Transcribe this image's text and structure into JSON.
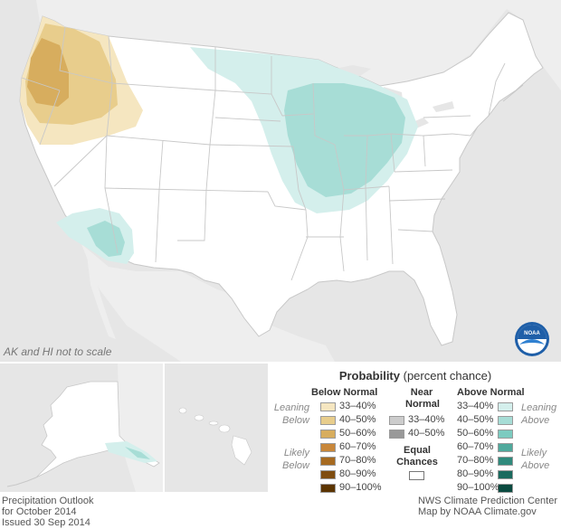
{
  "map": {
    "scale_note": "AK and HI not to scale",
    "ocean_color": "#e6e6e6",
    "land_color": "#ffffff",
    "below_colors": [
      "#f5e6c0",
      "#e8cd8c",
      "#d7ad5e",
      "#c8873a",
      "#a66a20",
      "#7f4d10",
      "#5b3400"
    ],
    "above_colors": [
      "#d4efec",
      "#a7ddd6",
      "#7ccbc0",
      "#4fa99c",
      "#2f8a7c",
      "#1a6a5e",
      "#0a4a40"
    ]
  },
  "legend": {
    "title_bold": "Probability",
    "title_rest": " (percent chance)",
    "below_header": "Below Normal",
    "near_header_1": "Near",
    "near_header_2": "Normal",
    "above_header": "Above Normal",
    "leaning_1": "Leaning",
    "leaning_2": "Below",
    "likely_1": "Likely",
    "likely_2": "Below",
    "leaning_above_1": "Leaning",
    "leaning_above_2": "Above",
    "likely_above_1": "Likely",
    "likely_above_2": "Above",
    "ranges": [
      "33–40%",
      "40–50%",
      "50–60%",
      "60–70%",
      "70–80%",
      "80–90%",
      "90–100%"
    ],
    "near_ranges": [
      "33–40%",
      "40–50%"
    ],
    "near_colors": [
      "#cccccc",
      "#999999"
    ],
    "equal_1": "Equal",
    "equal_2": "Chances"
  },
  "footer": {
    "left_1": "Precipitation Outlook",
    "left_2": "for October 2014",
    "left_3": "Issued 30 Sep 2014",
    "right_1": "NWS Climate Prediction Center",
    "right_2": "Map by NOAA Climate.gov"
  },
  "logo_text": "NOAA"
}
